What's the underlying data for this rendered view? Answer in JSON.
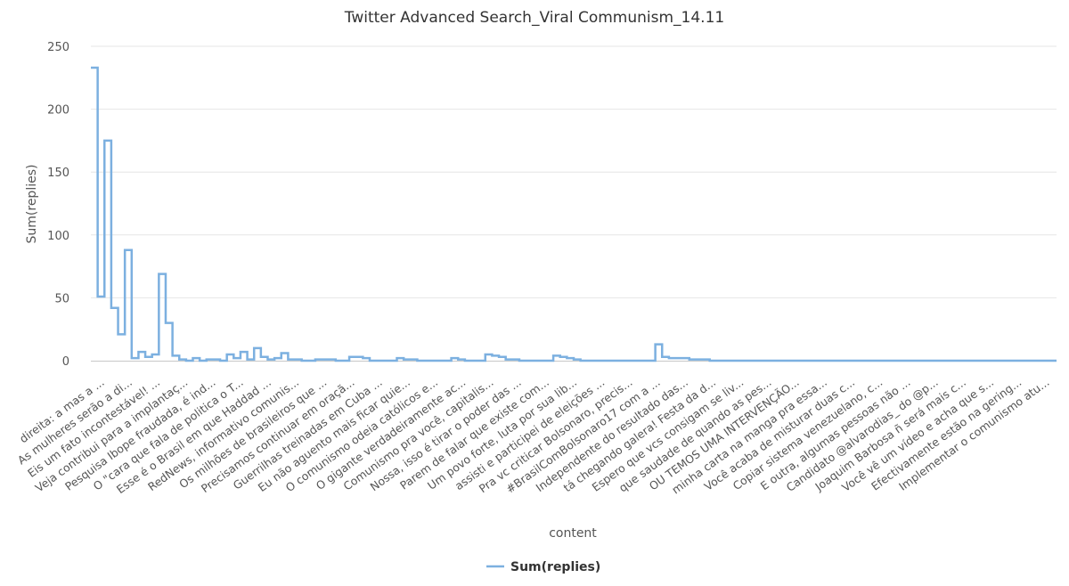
{
  "chart_data": {
    "type": "line",
    "step": true,
    "title": "Twitter Advanced Search_Viral Communism_14.11",
    "xlabel": "content",
    "ylabel": "Sum(replies)",
    "ylim": [
      0,
      250
    ],
    "yticks": [
      0,
      50,
      100,
      150,
      200,
      250
    ],
    "grid": true,
    "legend_position": "bottom-center",
    "color": "#7cb0e0",
    "x_tick_labels": [
      "direita: a mas a ...",
      "As mulheres serão a di...",
      "Eis um fato incontestável! ...",
      "Veja contribui para a implantaç...",
      "Pesquisa Ibope fraudada, é ind...",
      "O \"cara que fala de politica o T...",
      "Esse é o Brasil em que Haddad ...",
      "RedNews, informativo comunis...",
      "Os milhões de brasileiros que ...",
      "Precisamos continuar em oraçã...",
      "Guerrilhas treinadas em Cuba ...",
      "Eu não aguento mais ficar quie...",
      "O comunismo odeia católicos e...",
      "O gigante verdadeiramente ac...",
      "Comunismo pra você, capitalis...",
      "Nossa, isso é tirar o poder das ...",
      "Parem de falar que existe com...",
      "Um povo forte, luta por sua lib...",
      "assisti e participei de eleições ...",
      "Pra vc criticar Bolsonaro, precis...",
      "#BrasilComBolsonaro17 com a ...",
      "Independente do resultado das...",
      "tá chegando galera! Festa da d...",
      "Espero que vcs consigam se liv...",
      "que saudade de quando as pes...",
      "OU TEMOS UMA INTERVENÇÃO...",
      "minha carta na manga pra essa...",
      "Você acaba de misturar duas c...",
      "Copiar sistema venezuelano, c...",
      "E outra, algumas pessoas não ...",
      "Candidato @alvarodias_ do @p...",
      "Joaquim Barbosa ñ será mais c...",
      "Você vê um vídeo e acha que s...",
      "Efectivamente estão na gering...",
      "Implementar o comunismo atu..."
    ],
    "series": [
      {
        "name": "Sum(replies)",
        "values": [
          233,
          51,
          175,
          42,
          21,
          88,
          2,
          7,
          3,
          5,
          69,
          30,
          4,
          1,
          0,
          2,
          0,
          1,
          1,
          0,
          5,
          2,
          7,
          1,
          10,
          3,
          1,
          2,
          6,
          1,
          1,
          0,
          0,
          1,
          1,
          1,
          0,
          0,
          3,
          3,
          2,
          0,
          0,
          0,
          0,
          2,
          1,
          1,
          0,
          0,
          0,
          0,
          0,
          2,
          1,
          0,
          0,
          0,
          5,
          4,
          3,
          1,
          1,
          0,
          0,
          0,
          0,
          0,
          4,
          3,
          2,
          1,
          0,
          0,
          0,
          0,
          0,
          0,
          0,
          0,
          0,
          0,
          0,
          13,
          3,
          2,
          2,
          2,
          1,
          1,
          1,
          0,
          0,
          0,
          0,
          0,
          0,
          0,
          0,
          0,
          0,
          0,
          0,
          0,
          0,
          0,
          0,
          0,
          0,
          0,
          0,
          0,
          0,
          0,
          0,
          0,
          0,
          0,
          0,
          0,
          0,
          0,
          0,
          0,
          0,
          0,
          0,
          0,
          0,
          0,
          0,
          0,
          0,
          0,
          0,
          0,
          0,
          0,
          0,
          0,
          0,
          0
        ]
      }
    ]
  }
}
